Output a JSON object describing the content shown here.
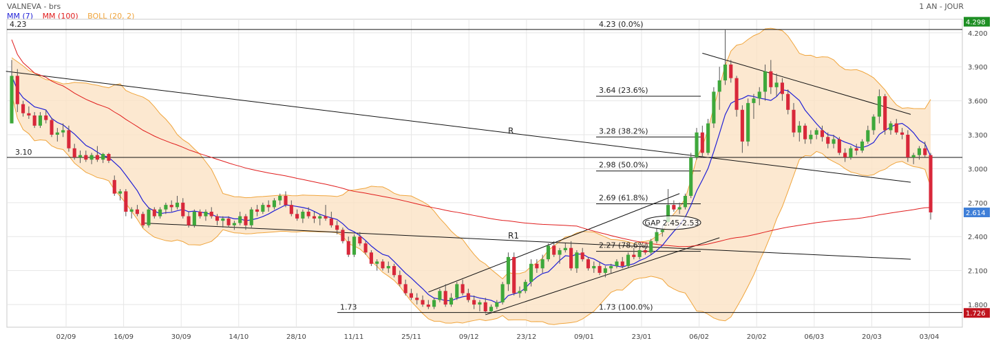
{
  "header": {
    "title": "VALNEVA - brs",
    "period": "1 AN - JOUR"
  },
  "legend": [
    {
      "label": "MM (7)",
      "color": "#1f1fd6"
    },
    {
      "label": "MM (100)",
      "color": "#e01b1b"
    },
    {
      "label": "BOLL (20, 2)",
      "color": "#f0a43a"
    }
  ],
  "colors": {
    "up": "#3ea83b",
    "down": "#d8283a",
    "boll_fill": "#fbe2c4",
    "boll_line": "#f0a43a",
    "last_price_badge": "#3f7fd8",
    "high_badge": "#1e8f24",
    "low_badge": "#c0141e"
  },
  "chart_data": {
    "type": "candlestick",
    "ylim": [
      1.6,
      4.32
    ],
    "y_ticks": [
      "4.200",
      "3.900",
      "3.600",
      "3.300",
      "3.000",
      "2.700",
      "2.400",
      "2.100",
      "1.800"
    ],
    "x_ticks": [
      "02/09",
      "16/09",
      "30/09",
      "14/10",
      "28/10",
      "11/11",
      "25/11",
      "09/12",
      "23/12",
      "09/01",
      "23/01",
      "06/02",
      "20/02",
      "06/03",
      "20/03",
      "03/04"
    ],
    "badges": {
      "high": "4.298",
      "last": "2.614",
      "low": "1.726"
    },
    "horizontal_levels": [
      {
        "value": 4.23,
        "label": "4.23"
      },
      {
        "value": 3.1,
        "label": "3.10"
      },
      {
        "value": 1.73,
        "label": "1.73"
      }
    ],
    "fibonacci": [
      {
        "value": 4.23,
        "label": "4.23  (0.0%)"
      },
      {
        "value": 3.64,
        "label": "3.64  (23.6%)"
      },
      {
        "value": 3.28,
        "label": "3.28  (38.2%)"
      },
      {
        "value": 2.98,
        "label": "2.98  (50.0%)"
      },
      {
        "value": 2.69,
        "label": "2.69  (61.8%)"
      },
      {
        "value": 2.27,
        "label": "2.27  (78.6%)"
      },
      {
        "value": 1.73,
        "label": "1.73  (100.0%)"
      }
    ],
    "annotations": {
      "resistance": "R",
      "resistance_1": "R1",
      "gap": "GAP 2.45-2.53"
    },
    "ohlc": [
      [
        3.4,
        3.96,
        3.4,
        3.82
      ],
      [
        3.82,
        3.88,
        3.5,
        3.57
      ],
      [
        3.57,
        3.6,
        3.46,
        3.49
      ],
      [
        3.49,
        3.55,
        3.44,
        3.47
      ],
      [
        3.47,
        3.5,
        3.36,
        3.38
      ],
      [
        3.38,
        3.5,
        3.36,
        3.47
      ],
      [
        3.47,
        3.52,
        3.4,
        3.43
      ],
      [
        3.43,
        3.45,
        3.28,
        3.3
      ],
      [
        3.3,
        3.36,
        3.24,
        3.32
      ],
      [
        3.32,
        3.4,
        3.28,
        3.34
      ],
      [
        3.34,
        3.38,
        3.15,
        3.18
      ],
      [
        3.18,
        3.22,
        3.08,
        3.1
      ],
      [
        3.1,
        3.16,
        3.05,
        3.12
      ],
      [
        3.12,
        3.16,
        3.06,
        3.08
      ],
      [
        3.08,
        3.14,
        3.04,
        3.12
      ],
      [
        3.12,
        3.2,
        3.06,
        3.08
      ],
      [
        3.08,
        3.14,
        3.05,
        3.13
      ],
      [
        3.13,
        3.14,
        3.05,
        3.07
      ],
      [
        2.9,
        2.94,
        2.76,
        2.78
      ],
      [
        2.78,
        2.82,
        2.72,
        2.8
      ],
      [
        2.8,
        2.82,
        2.58,
        2.62
      ],
      [
        2.62,
        2.66,
        2.56,
        2.64
      ],
      [
        2.64,
        2.68,
        2.58,
        2.6
      ],
      [
        2.6,
        2.62,
        2.48,
        2.5
      ],
      [
        2.5,
        2.66,
        2.48,
        2.64
      ],
      [
        2.64,
        2.66,
        2.56,
        2.58
      ],
      [
        2.58,
        2.66,
        2.56,
        2.64
      ],
      [
        2.64,
        2.7,
        2.6,
        2.68
      ],
      [
        2.68,
        2.72,
        2.62,
        2.66
      ],
      [
        2.66,
        2.76,
        2.64,
        2.7
      ],
      [
        2.7,
        2.74,
        2.56,
        2.58
      ],
      [
        2.58,
        2.62,
        2.48,
        2.5
      ],
      [
        2.5,
        2.64,
        2.48,
        2.62
      ],
      [
        2.62,
        2.64,
        2.56,
        2.58
      ],
      [
        2.58,
        2.64,
        2.54,
        2.62
      ],
      [
        2.62,
        2.66,
        2.56,
        2.58
      ],
      [
        2.58,
        2.6,
        2.5,
        2.54
      ],
      [
        2.54,
        2.58,
        2.48,
        2.56
      ],
      [
        2.56,
        2.58,
        2.48,
        2.5
      ],
      [
        2.5,
        2.54,
        2.46,
        2.52
      ],
      [
        2.52,
        2.62,
        2.5,
        2.58
      ],
      [
        2.58,
        2.6,
        2.46,
        2.5
      ],
      [
        2.5,
        2.66,
        2.48,
        2.64
      ],
      [
        2.64,
        2.68,
        2.58,
        2.62
      ],
      [
        2.62,
        2.7,
        2.6,
        2.68
      ],
      [
        2.68,
        2.72,
        2.62,
        2.66
      ],
      [
        2.66,
        2.74,
        2.64,
        2.72
      ],
      [
        2.72,
        2.78,
        2.68,
        2.76
      ],
      [
        2.76,
        2.8,
        2.66,
        2.68
      ],
      [
        2.68,
        2.72,
        2.58,
        2.6
      ],
      [
        2.6,
        2.64,
        2.54,
        2.56
      ],
      [
        2.56,
        2.64,
        2.52,
        2.62
      ],
      [
        2.62,
        2.66,
        2.56,
        2.58
      ],
      [
        2.58,
        2.62,
        2.52,
        2.56
      ],
      [
        2.56,
        2.6,
        2.5,
        2.58
      ],
      [
        2.58,
        2.68,
        2.54,
        2.56
      ],
      [
        2.56,
        2.62,
        2.48,
        2.5
      ],
      [
        2.5,
        2.54,
        2.42,
        2.46
      ],
      [
        2.46,
        2.48,
        2.34,
        2.36
      ],
      [
        2.36,
        2.4,
        2.22,
        2.24
      ],
      [
        2.24,
        2.42,
        2.22,
        2.4
      ],
      [
        2.4,
        2.44,
        2.32,
        2.34
      ],
      [
        2.34,
        2.36,
        2.24,
        2.26
      ],
      [
        2.26,
        2.28,
        2.14,
        2.16
      ],
      [
        2.16,
        2.2,
        2.1,
        2.18
      ],
      [
        2.18,
        2.2,
        2.1,
        2.12
      ],
      [
        2.12,
        2.18,
        2.08,
        2.14
      ],
      [
        2.14,
        2.16,
        2.04,
        2.06
      ],
      [
        2.06,
        2.1,
        1.96,
        1.98
      ],
      [
        1.98,
        2.02,
        1.88,
        1.9
      ],
      [
        1.9,
        1.94,
        1.84,
        1.86
      ],
      [
        1.86,
        1.9,
        1.8,
        1.84
      ],
      [
        1.84,
        1.88,
        1.78,
        1.8
      ],
      [
        1.8,
        1.84,
        1.76,
        1.78
      ],
      [
        1.78,
        1.86,
        1.76,
        1.84
      ],
      [
        1.84,
        1.94,
        1.82,
        1.92
      ],
      [
        1.92,
        1.98,
        1.78,
        1.8
      ],
      [
        1.8,
        1.9,
        1.78,
        1.86
      ],
      [
        1.86,
        2.0,
        1.84,
        1.98
      ],
      [
        1.98,
        2.02,
        1.88,
        1.9
      ],
      [
        1.9,
        1.94,
        1.82,
        1.84
      ],
      [
        1.84,
        1.88,
        1.76,
        1.8
      ],
      [
        1.8,
        1.84,
        1.74,
        1.82
      ],
      [
        1.82,
        1.86,
        1.72,
        1.74
      ],
      [
        1.74,
        1.8,
        1.72,
        1.78
      ],
      [
        1.78,
        1.84,
        1.76,
        1.82
      ],
      [
        1.82,
        2.0,
        1.8,
        1.98
      ],
      [
        1.98,
        2.26,
        1.92,
        2.22
      ],
      [
        2.22,
        2.26,
        1.88,
        1.9
      ],
      [
        1.9,
        1.96,
        1.86,
        1.92
      ],
      [
        1.92,
        2.02,
        1.9,
        2.0
      ],
      [
        2.0,
        2.2,
        1.96,
        2.16
      ],
      [
        2.16,
        2.2,
        2.08,
        2.12
      ],
      [
        2.12,
        2.24,
        2.08,
        2.2
      ],
      [
        2.2,
        2.34,
        2.18,
        2.32
      ],
      [
        2.32,
        2.36,
        2.22,
        2.24
      ],
      [
        2.24,
        2.3,
        2.16,
        2.28
      ],
      [
        2.28,
        2.34,
        2.26,
        2.3
      ],
      [
        2.3,
        2.36,
        2.1,
        2.12
      ],
      [
        2.12,
        2.28,
        2.08,
        2.26
      ],
      [
        2.26,
        2.3,
        2.18,
        2.2
      ],
      [
        2.2,
        2.22,
        2.1,
        2.12
      ],
      [
        2.12,
        2.18,
        2.08,
        2.14
      ],
      [
        2.14,
        2.18,
        2.06,
        2.08
      ],
      [
        2.08,
        2.14,
        2.04,
        2.12
      ],
      [
        2.12,
        2.16,
        2.08,
        2.14
      ],
      [
        2.14,
        2.2,
        2.12,
        2.18
      ],
      [
        2.18,
        2.22,
        2.12,
        2.14
      ],
      [
        2.14,
        2.26,
        2.12,
        2.24
      ],
      [
        2.24,
        2.3,
        2.2,
        2.22
      ],
      [
        2.22,
        2.32,
        2.2,
        2.28
      ],
      [
        2.28,
        2.34,
        2.24,
        2.26
      ],
      [
        2.26,
        2.38,
        2.24,
        2.36
      ],
      [
        2.36,
        2.48,
        2.34,
        2.44
      ],
      [
        2.44,
        2.5,
        2.4,
        2.46
      ],
      [
        2.53,
        2.82,
        2.52,
        2.68
      ],
      [
        2.68,
        2.72,
        2.62,
        2.64
      ],
      [
        2.64,
        2.7,
        2.6,
        2.66
      ],
      [
        2.66,
        2.78,
        2.64,
        2.76
      ],
      [
        2.76,
        3.14,
        2.74,
        3.1
      ],
      [
        3.1,
        3.36,
        3.08,
        3.32
      ],
      [
        3.32,
        3.38,
        3.1,
        3.14
      ],
      [
        3.14,
        3.44,
        3.12,
        3.4
      ],
      [
        3.4,
        3.72,
        3.36,
        3.68
      ],
      [
        3.68,
        3.9,
        3.52,
        3.78
      ],
      [
        3.78,
        4.23,
        3.74,
        3.92
      ],
      [
        3.92,
        3.96,
        3.76,
        3.8
      ],
      [
        3.8,
        3.82,
        3.46,
        3.52
      ],
      [
        3.52,
        3.56,
        3.14,
        3.24
      ],
      [
        3.24,
        3.62,
        3.2,
        3.58
      ],
      [
        3.58,
        3.66,
        3.44,
        3.62
      ],
      [
        3.62,
        3.72,
        3.56,
        3.68
      ],
      [
        3.68,
        3.92,
        3.6,
        3.86
      ],
      [
        3.86,
        3.96,
        3.66,
        3.72
      ],
      [
        3.72,
        3.84,
        3.64,
        3.76
      ],
      [
        3.76,
        3.8,
        3.6,
        3.66
      ],
      [
        3.66,
        3.7,
        3.48,
        3.52
      ],
      [
        3.52,
        3.58,
        3.28,
        3.32
      ],
      [
        3.32,
        3.42,
        3.24,
        3.38
      ],
      [
        3.38,
        3.4,
        3.22,
        3.26
      ],
      [
        3.26,
        3.34,
        3.22,
        3.3
      ],
      [
        3.3,
        3.36,
        3.26,
        3.34
      ],
      [
        3.34,
        3.38,
        3.24,
        3.28
      ],
      [
        3.28,
        3.32,
        3.18,
        3.22
      ],
      [
        3.22,
        3.3,
        3.18,
        3.26
      ],
      [
        3.26,
        3.28,
        3.12,
        3.14
      ],
      [
        3.14,
        3.18,
        3.06,
        3.1
      ],
      [
        3.1,
        3.2,
        3.08,
        3.18
      ],
      [
        3.18,
        3.22,
        3.12,
        3.16
      ],
      [
        3.16,
        3.26,
        3.14,
        3.24
      ],
      [
        3.24,
        3.38,
        3.22,
        3.34
      ],
      [
        3.34,
        3.48,
        3.3,
        3.46
      ],
      [
        3.46,
        3.7,
        3.4,
        3.64
      ],
      [
        3.64,
        3.66,
        3.3,
        3.34
      ],
      [
        3.34,
        3.42,
        3.3,
        3.4
      ],
      [
        3.4,
        3.44,
        3.3,
        3.32
      ],
      [
        3.32,
        3.36,
        3.26,
        3.3
      ],
      [
        3.3,
        3.34,
        3.06,
        3.1
      ],
      [
        3.1,
        3.14,
        3.04,
        3.12
      ],
      [
        3.12,
        3.2,
        3.08,
        3.18
      ],
      [
        3.18,
        3.24,
        3.1,
        3.12
      ],
      [
        3.12,
        3.14,
        2.55,
        2.614
      ]
    ]
  }
}
